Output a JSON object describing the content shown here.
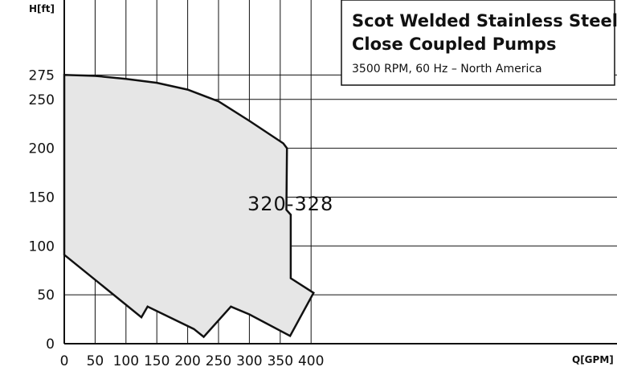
{
  "chart_data": {
    "type": "area",
    "title": "Scot Welded Stainless Steel,",
    "title_line2": "Close Coupled Pumps",
    "subtitle": "3500 RPM, 60 Hz – North America",
    "xlabel": "Q[GPM]",
    "ylabel": "H[ft]",
    "xlim": [
      0,
      410
    ],
    "ylim": [
      0,
      285
    ],
    "xticks": [
      "0",
      "50",
      "100",
      "150",
      "200",
      "250",
      "300",
      "350",
      "400"
    ],
    "yticks": [
      "0",
      "50",
      "100",
      "150",
      "200",
      "250",
      "275"
    ],
    "ytick_values": [
      0,
      50,
      100,
      150,
      200,
      250,
      275
    ],
    "xtick_values": [
      0,
      50,
      100,
      150,
      200,
      250,
      300,
      350,
      400
    ],
    "grid": true,
    "fill_color": "#e6e6e6",
    "line_color": "#111111",
    "series": [
      {
        "name": "320-328",
        "points": [
          [
            0,
            91
          ],
          [
            125,
            27
          ],
          [
            135,
            38
          ],
          [
            210,
            15
          ],
          [
            226,
            7
          ],
          [
            270,
            38
          ],
          [
            300,
            30
          ],
          [
            366,
            8
          ],
          [
            404,
            52
          ],
          [
            367,
            67
          ],
          [
            367,
            132
          ],
          [
            360,
            137
          ],
          [
            361,
            200
          ],
          [
            355,
            205
          ],
          [
            300,
            228
          ],
          [
            250,
            248
          ],
          [
            200,
            260
          ],
          [
            150,
            267
          ],
          [
            100,
            271
          ],
          [
            50,
            274
          ],
          [
            0,
            275
          ]
        ]
      }
    ]
  }
}
